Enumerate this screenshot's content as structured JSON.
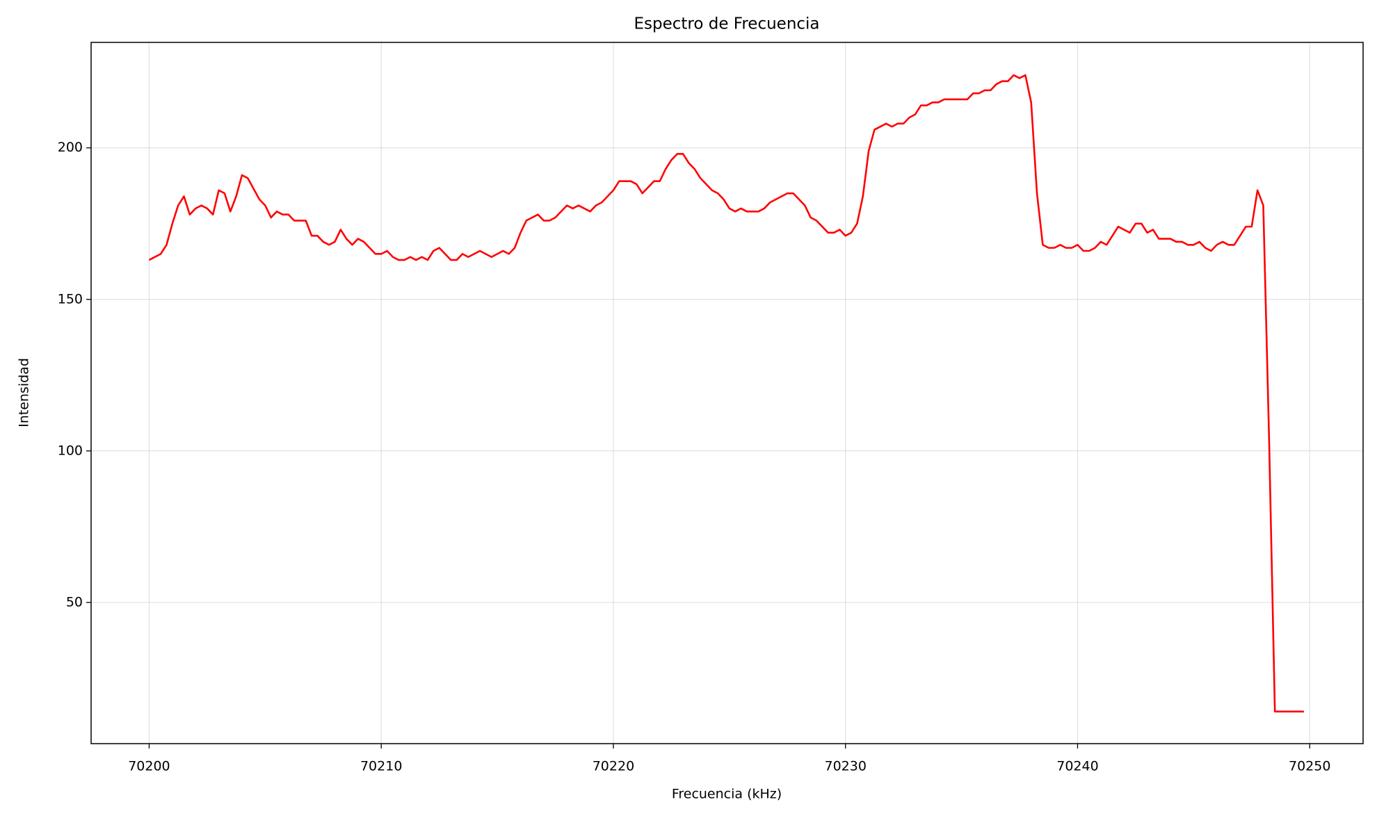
{
  "chart_data": {
    "type": "line",
    "title": "Espectro de Frecuencia",
    "xlabel": "Frecuencia (kHz)",
    "ylabel": "Intensidad",
    "x": [
      70200,
      70200.5,
      70200.75,
      70201,
      70201.25,
      70201.5,
      70201.75,
      70202,
      70202.25,
      70202.5,
      70202.75,
      70203,
      70203.25,
      70203.5,
      70203.75,
      70204,
      70204.25,
      70204.75,
      70205,
      70205.25,
      70205.5,
      70205.75,
      70206,
      70206.25,
      70206.75,
      70207,
      70207.25,
      70207.5,
      70207.75,
      70208,
      70208.25,
      70208.5,
      70208.75,
      70209,
      70209.25,
      70209.75,
      70210,
      70210.25,
      70210.5,
      70210.75,
      70211,
      70211.25,
      70211.5,
      70211.75,
      70212,
      70212.25,
      70212.5,
      70213,
      70213.25,
      70213.5,
      70213.75,
      70214.25,
      70214.75,
      70215.25,
      70215.5,
      70215.75,
      70216,
      70216.25,
      70216.75,
      70217,
      70217.25,
      70217.5,
      70218,
      70218.25,
      70218.5,
      70219,
      70219.25,
      70219.5,
      70220,
      70220.25,
      70220.75,
      70221,
      70221.25,
      70221.75,
      70222,
      70222.25,
      70222.5,
      70222.75,
      70223,
      70223.25,
      70223.5,
      70223.75,
      70224.25,
      70224.5,
      70224.75,
      70225,
      70225.25,
      70225.5,
      70225.75,
      70226.25,
      70226.5,
      70226.75,
      70227.25,
      70227.5,
      70227.75,
      70228.25,
      70228.5,
      70228.75,
      70229.25,
      70229.5,
      70229.75,
      70230,
      70230.25,
      70230.5,
      70230.75,
      70231,
      70231.25,
      70231.75,
      70232,
      70232.25,
      70232.5,
      70232.75,
      70233,
      70233.25,
      70233.5,
      70233.75,
      70234,
      70234.25,
      70235.25,
      70235.5,
      70235.75,
      70236,
      70236.25,
      70236.5,
      70236.75,
      70237,
      70237.25,
      70237.5,
      70237.75,
      70238,
      70238.25,
      70238.5,
      70238.75,
      70239,
      70239.25,
      70239.5,
      70239.75,
      70240,
      70240.25,
      70240.5,
      70240.75,
      70241,
      70241.25,
      70241.75,
      70242.25,
      70242.5,
      70242.75,
      70243,
      70243.25,
      70243.5,
      70244,
      70244.25,
      70244.5,
      70244.75,
      70245,
      70245.25,
      70245.5,
      70245.75,
      70246,
      70246.25,
      70246.5,
      70246.75,
      70247.25,
      70247.5,
      70247.75,
      70248,
      70248.25,
      70248.5,
      70249.75
    ],
    "series": [
      {
        "color": "#ff0000",
        "values": [
          163,
          165,
          168,
          175,
          181,
          184,
          178,
          180,
          181,
          180,
          178,
          186,
          185,
          179,
          184,
          191,
          190,
          183,
          181,
          177,
          179,
          178,
          178,
          176,
          176,
          171,
          171,
          169,
          168,
          169,
          173,
          170,
          168,
          170,
          169,
          165,
          165,
          166,
          164,
          163,
          163,
          164,
          163,
          164,
          163,
          166,
          167,
          163,
          163,
          165,
          164,
          166,
          164,
          166,
          165,
          167,
          172,
          176,
          178,
          176,
          176,
          177,
          181,
          180,
          181,
          179,
          181,
          182,
          186,
          189,
          189,
          188,
          185,
          189,
          189,
          193,
          196,
          198,
          198,
          195,
          193,
          190,
          186,
          185,
          183,
          180,
          179,
          180,
          179,
          179,
          180,
          182,
          184,
          185,
          185,
          181,
          177,
          176,
          172,
          172,
          173,
          171,
          172,
          175,
          184,
          199,
          206,
          208,
          207,
          208,
          208,
          210,
          211,
          214,
          214,
          215,
          215,
          216,
          216,
          218,
          218,
          219,
          219,
          221,
          222,
          222,
          224,
          223,
          224,
          215,
          185,
          168,
          167,
          167,
          168,
          167,
          167,
          168,
          166,
          166,
          167,
          169,
          168,
          174,
          172,
          175,
          175,
          172,
          173,
          170,
          170,
          169,
          169,
          168,
          168,
          169,
          167,
          166,
          168,
          169,
          168,
          168,
          174,
          174,
          186,
          181,
          104,
          14,
          14
        ]
      }
    ],
    "xlim": [
      70197.5,
      70252.3
    ],
    "ylim": [
      3.4,
      234.8
    ],
    "xticks": [
      70200,
      70210,
      70220,
      70230,
      70240,
      70250
    ],
    "yticks": [
      50,
      100,
      150,
      200
    ],
    "grid": true
  }
}
